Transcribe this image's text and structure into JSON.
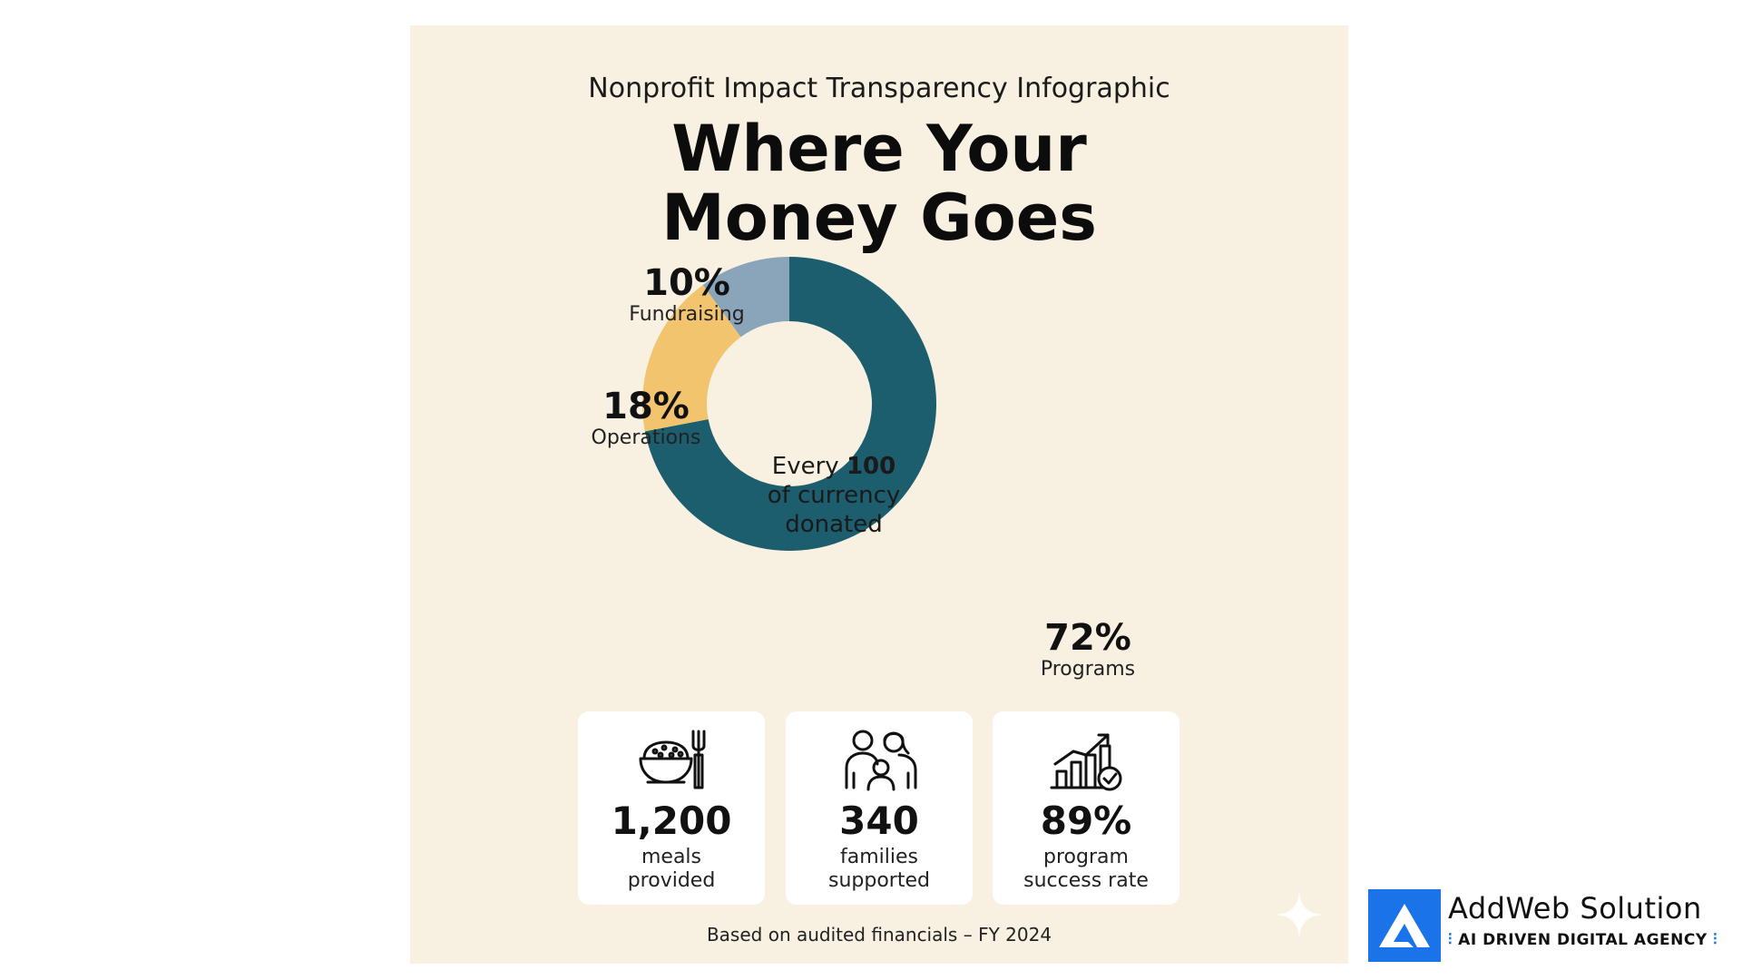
{
  "infographic": {
    "subtitle": "Nonprofit Impact Transparency Infographic",
    "title_line1": "Where Your",
    "title_line2": "Money Goes",
    "center_prefix": "Every ",
    "center_bold": "100",
    "center_line2": "of currency",
    "center_line3": "donated",
    "footnote": "Based on audited financials – FY 2024"
  },
  "chart_data": {
    "type": "pie",
    "title": "Where Your Money Goes",
    "subtitle": "Nonprofit Impact Transparency Infographic",
    "slices": [
      {
        "label": "Programs",
        "value": 72,
        "value_label": "72%",
        "color": "#1c5d6e"
      },
      {
        "label": "Operations",
        "value": 18,
        "value_label": "18%",
        "color": "#f2c46e"
      },
      {
        "label": "Fundraising",
        "value": 10,
        "value_label": "10%",
        "color": "#8aa4b9"
      }
    ],
    "legend": "none"
  },
  "stats": [
    {
      "value": "1,200",
      "label_line1": "meals",
      "label_line2": "provided",
      "icon": "meal-bowl-fork-icon"
    },
    {
      "value": "340",
      "label_line1": "families",
      "label_line2": "supported",
      "icon": "family-icon"
    },
    {
      "value": "89%",
      "label_line1": "program",
      "label_line2": "success rate",
      "icon": "growth-chart-check-icon"
    }
  ],
  "brand": {
    "name": "AddWeb Solution",
    "tagline": "AI DRIVEN DIGITAL AGENCY",
    "accent": "#1a73e8"
  }
}
